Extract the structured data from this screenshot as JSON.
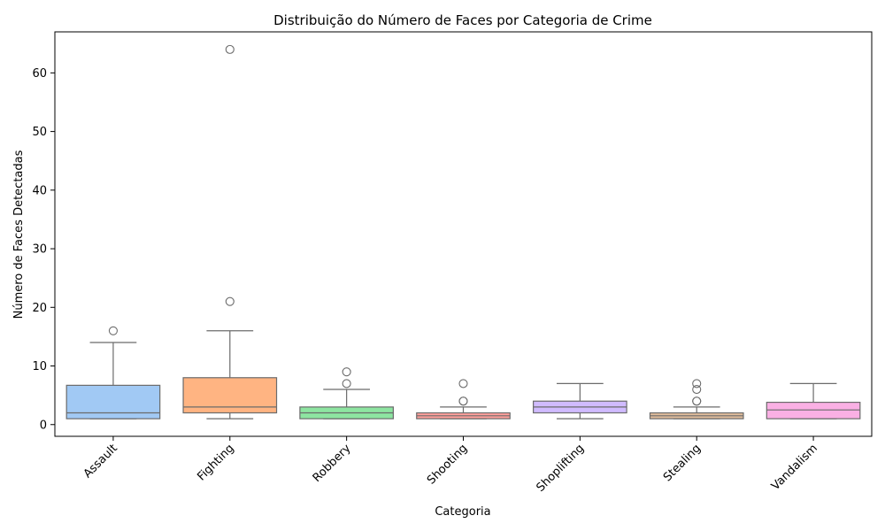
{
  "chart_data": {
    "type": "box",
    "title": "Distribuição do Número de Faces por Categoria de Crime",
    "xlabel": "Categoria",
    "ylabel": "Número de Faces Detectadas",
    "ylim": [
      -2,
      67
    ],
    "yticks": [
      0,
      10,
      20,
      30,
      40,
      50,
      60
    ],
    "grid": false,
    "categories": [
      "Assault",
      "Fighting",
      "Robbery",
      "Shooting",
      "Shoplifting",
      "Stealing",
      "Vandalism"
    ],
    "colors": [
      "#a1c9f4",
      "#ffb482",
      "#8de5a1",
      "#ff9f9b",
      "#d0bbff",
      "#debb9b",
      "#fab0e4"
    ],
    "boxes": [
      {
        "min": 1,
        "q1": 1,
        "median": 2,
        "q3": 6.7,
        "max": 14,
        "outliers": [
          16
        ]
      },
      {
        "min": 1,
        "q1": 2,
        "median": 3,
        "q3": 8,
        "max": 16,
        "outliers": [
          21,
          64
        ]
      },
      {
        "min": 1,
        "q1": 1,
        "median": 2,
        "q3": 3,
        "max": 6,
        "outliers": [
          7,
          9
        ]
      },
      {
        "min": 1,
        "q1": 1,
        "median": 1.5,
        "q3": 2,
        "max": 3,
        "outliers": [
          4,
          4,
          7
        ]
      },
      {
        "min": 1,
        "q1": 2,
        "median": 3,
        "q3": 4,
        "max": 7,
        "outliers": []
      },
      {
        "min": 1,
        "q1": 1,
        "median": 1.5,
        "q3": 2,
        "max": 3,
        "outliers": [
          4,
          4,
          6,
          7
        ]
      },
      {
        "min": 1,
        "q1": 1,
        "median": 2.5,
        "q3": 3.8,
        "max": 7,
        "outliers": []
      }
    ]
  }
}
